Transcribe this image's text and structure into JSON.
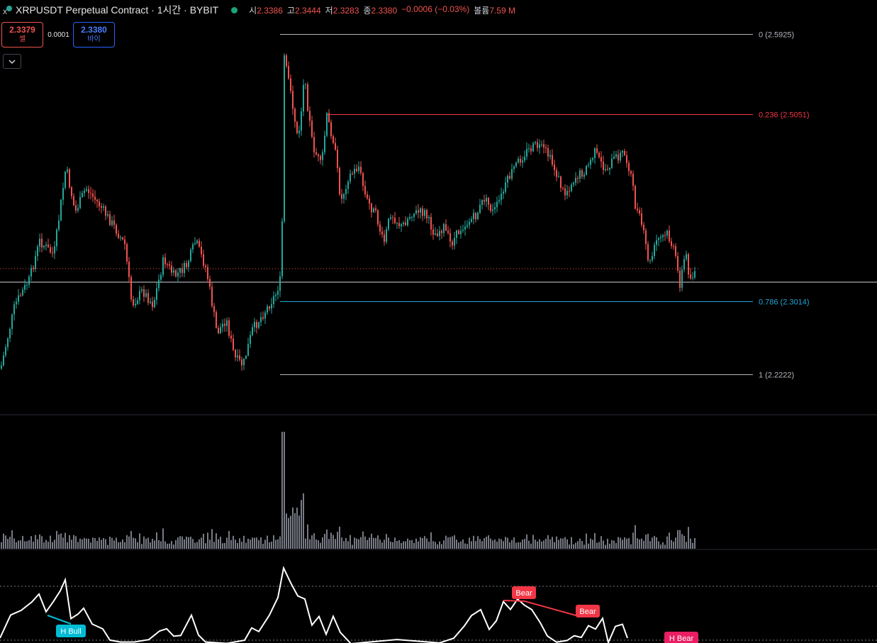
{
  "header": {
    "title": "XRPUSDT Perpetual Contract · 1시간 · BYBIT",
    "ohlc": [
      {
        "label": "시",
        "value": "2.3386"
      },
      {
        "label": "고",
        "value": "2.3444"
      },
      {
        "label": "저",
        "value": "2.3283"
      },
      {
        "label": "종",
        "value": "2.3380"
      }
    ],
    "change": "−0.0006 (−0.03%)",
    "volume_label": "볼륨",
    "volume_value": "7.59 M"
  },
  "trade": {
    "sell_price": "2.3379",
    "sell_label": "셀",
    "spread": "0.0001",
    "buy_price": "2.3380",
    "buy_label": "바이"
  },
  "fib": [
    {
      "label": "0 (2.5925)",
      "price": 2.5925,
      "color": "#b2b5be"
    },
    {
      "label": "0.236 (2.5051)",
      "price": 2.5051,
      "color": "#f23645"
    },
    {
      "label": "0.786 (2.3014)",
      "price": 2.3014,
      "color": "#22a5d6"
    },
    {
      "label": "1 (2.2222)",
      "price": 2.2222,
      "color": "#b2b5be"
    }
  ],
  "indicator_labels": [
    {
      "text": "H Bull",
      "color": "#00bcd4"
    },
    {
      "text": "Bear",
      "color": "#f23645"
    },
    {
      "text": "Bear",
      "color": "#f23645"
    },
    {
      "text": "H Bear",
      "color": "#e91e63"
    }
  ],
  "colors": {
    "up": "#26a69a",
    "down": "#ef5350",
    "volume": "#787b86"
  }
}
